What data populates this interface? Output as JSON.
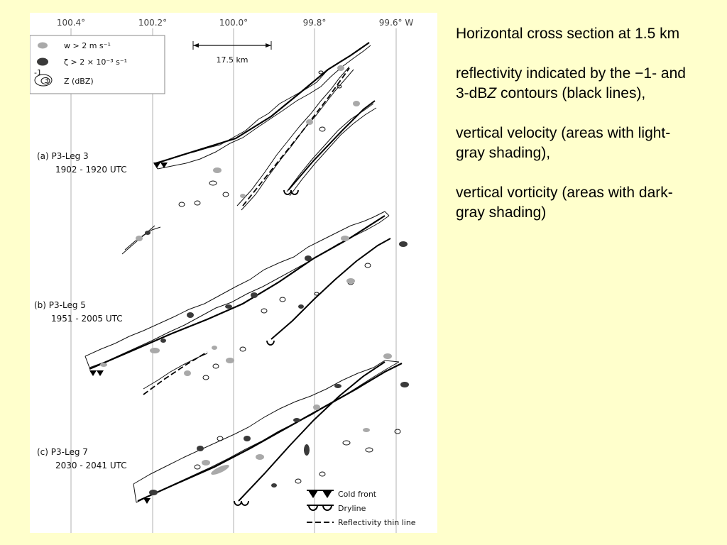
{
  "figure": {
    "longitudes": [
      "100.4°",
      "100.2°",
      "100.0°",
      "99.8°",
      "99.6° W"
    ],
    "scale_label": "17.5 km",
    "legend_top": [
      {
        "icon": "light-gray-blob",
        "label": "w > 2  m s⁻¹"
      },
      {
        "icon": "dark-gray-blob",
        "label": "ζ > 2 × 10⁻³ s⁻¹"
      },
      {
        "icon": "contour-pair",
        "contour_labels": [
          "-1",
          "3"
        ],
        "label": "Z (dBZ)"
      }
    ],
    "panels": [
      {
        "label": "(a) P3-Leg 3",
        "time": "1902 - 1920 UTC"
      },
      {
        "label": "(b) P3-Leg 5",
        "time": "1951 - 2005 UTC"
      },
      {
        "label": "(c) P3-Leg 7",
        "time": "2030 - 2041 UTC"
      }
    ],
    "legend_bottom": [
      {
        "icon": "cold-front-symbol",
        "label": "Cold front"
      },
      {
        "icon": "dryline-symbol",
        "label": "Dryline"
      },
      {
        "icon": "dashed-line",
        "label": "Reflectivity thin line"
      }
    ],
    "colors": {
      "light_gray": "#a9a9a9",
      "dark_gray": "#3a3a3a",
      "background": "#FFFFCC"
    }
  },
  "caption": {
    "p1": "Horizontal cross section at 1.5 km",
    "p2_pre": "reflectivity indicated by the −1- and 3-dB",
    "p2_italic": "Z",
    "p2_post": " contours (black lines),",
    "p3": "vertical velocity (areas with light-gray shading),",
    "p4": "vertical vorticity (areas with dark-gray shading)"
  }
}
